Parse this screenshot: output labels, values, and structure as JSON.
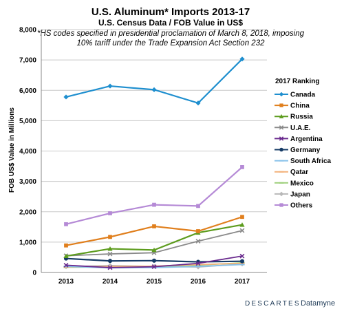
{
  "chart_data": {
    "type": "line",
    "title": "U.S. Aluminum* Imports 2013-17",
    "subtitle": "U.S. Census Data / FOB Value in US$",
    "annotation_lines": [
      "*HS codes specified in presidential proclamation of March 8, 2018, imposing",
      "10% tariff under the Trade Expansion Act Section 232"
    ],
    "ylabel": "FOB US$ Value in Millions",
    "xlabel": "",
    "x": [
      "2013",
      "2014",
      "2015",
      "2016",
      "2017"
    ],
    "ylim": [
      0,
      8000
    ],
    "yticks": [
      0,
      1000,
      2000,
      3000,
      4000,
      5000,
      6000,
      7000,
      8000
    ],
    "ytick_labels": [
      "0",
      "1,000",
      "2,000",
      "3,000",
      "4,000",
      "5,000",
      "6,000",
      "7,000",
      "8,000"
    ],
    "grid": "horizontal",
    "legend_title": "2017 Ranking",
    "legend_position": "right",
    "series": [
      {
        "name": "Canada",
        "color": "#1f8fcf",
        "marker": "diamond",
        "values": [
          5780,
          6140,
          6020,
          5580,
          7030
        ]
      },
      {
        "name": "China",
        "color": "#e07f1d",
        "marker": "square",
        "values": [
          890,
          1170,
          1520,
          1360,
          1830
        ]
      },
      {
        "name": "Russia",
        "color": "#5d9c1e",
        "marker": "triangle",
        "values": [
          540,
          780,
          740,
          1310,
          1570
        ]
      },
      {
        "name": "U.A.E.",
        "color": "#8a8a8a",
        "marker": "x",
        "values": [
          550,
          610,
          650,
          1030,
          1380
        ]
      },
      {
        "name": "Argentina",
        "color": "#6a2a8e",
        "marker": "x",
        "values": [
          240,
          160,
          190,
          300,
          540
        ]
      },
      {
        "name": "Germany",
        "color": "#163b66",
        "marker": "circle",
        "values": [
          460,
          380,
          390,
          350,
          370
        ]
      },
      {
        "name": "South Africa",
        "color": "#86c1ea",
        "marker": "dash",
        "values": [
          200,
          150,
          160,
          200,
          260
        ]
      },
      {
        "name": "Qatar",
        "color": "#f3b27a",
        "marker": "dash",
        "values": [
          180,
          200,
          210,
          260,
          300
        ]
      },
      {
        "name": "Mexico",
        "color": "#9dcf7a",
        "marker": "dash",
        "values": [
          170,
          180,
          190,
          240,
          320
        ]
      },
      {
        "name": "Japan",
        "color": "#b8b8b8",
        "marker": "diamond",
        "values": [
          190,
          230,
          200,
          180,
          280
        ]
      },
      {
        "name": "Others",
        "color": "#b58ad6",
        "marker": "square",
        "values": [
          1590,
          1950,
          2230,
          2190,
          3470
        ]
      }
    ]
  },
  "footer": {
    "brand_main": "DESCARTES",
    "brand_sub": "Datamyne"
  }
}
